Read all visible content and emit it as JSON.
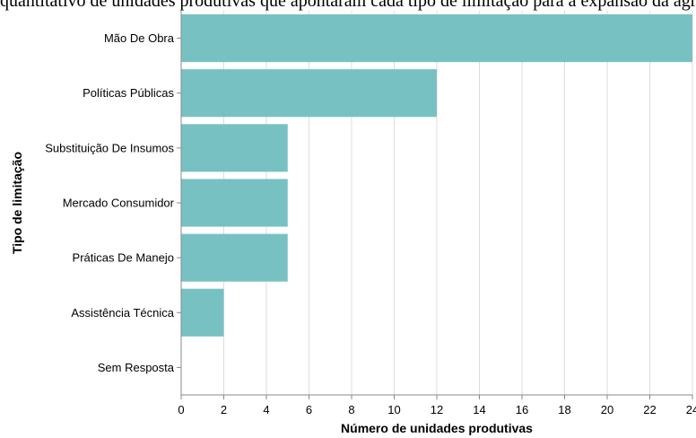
{
  "caption_text": "quantitativo de unidades produtivas que apontaram cada tipo de limitação para a expansão da agricultura orgânica",
  "chart_data": {
    "type": "bar",
    "orientation": "horizontal",
    "categories": [
      "Mão De Obra",
      "Políticas Públicas",
      "Substituição De Insumos",
      "Mercado Consumidor",
      "Práticas De Manejo",
      "Assistência Técnica",
      "Sem Resposta"
    ],
    "values": [
      24,
      12,
      5,
      5,
      5,
      2,
      0
    ],
    "xlabel": "Número de unidades produtivas",
    "ylabel": "Tipo de limitação",
    "xlim": [
      0,
      24
    ],
    "xticks": [
      0,
      2,
      4,
      6,
      8,
      10,
      12,
      14,
      16,
      18,
      20,
      22,
      24
    ],
    "grid": "vertical",
    "bar_color": "#78c1c2"
  }
}
